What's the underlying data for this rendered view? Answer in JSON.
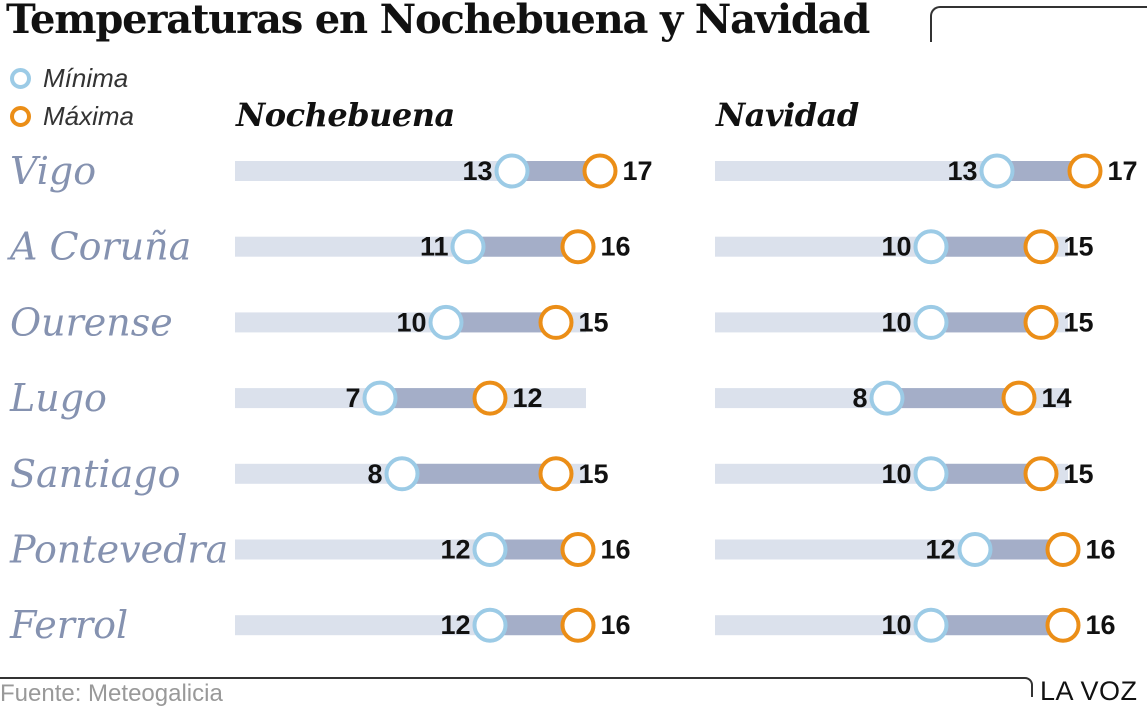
{
  "title": "Temperaturas en Nochebuena y Navidad",
  "legend": {
    "min_label": "Mínima",
    "max_label": "Máxima"
  },
  "colors": {
    "min": "#9ccbe6",
    "max": "#eb8e17",
    "track": "#dbe1ec",
    "range": "#a4aec8",
    "city": "#8592b0"
  },
  "chart_data": {
    "type": "range-dot",
    "cities": [
      "Vigo",
      "A Coruña",
      "Ourense",
      "Lugo",
      "Santiago",
      "Pontevedra",
      "Ferrol"
    ],
    "panels": [
      {
        "name": "Nochebuena",
        "min": [
          13,
          11,
          10,
          7,
          8,
          12,
          12
        ],
        "max": [
          17,
          16,
          15,
          12,
          15,
          16,
          16
        ]
      },
      {
        "name": "Navidad",
        "min": [
          13,
          10,
          10,
          8,
          10,
          12,
          10
        ],
        "max": [
          17,
          15,
          15,
          14,
          15,
          16,
          16
        ]
      }
    ]
  },
  "footer": {
    "source": "Fuente: Meteogalicia",
    "brand": "LA VOZ"
  }
}
